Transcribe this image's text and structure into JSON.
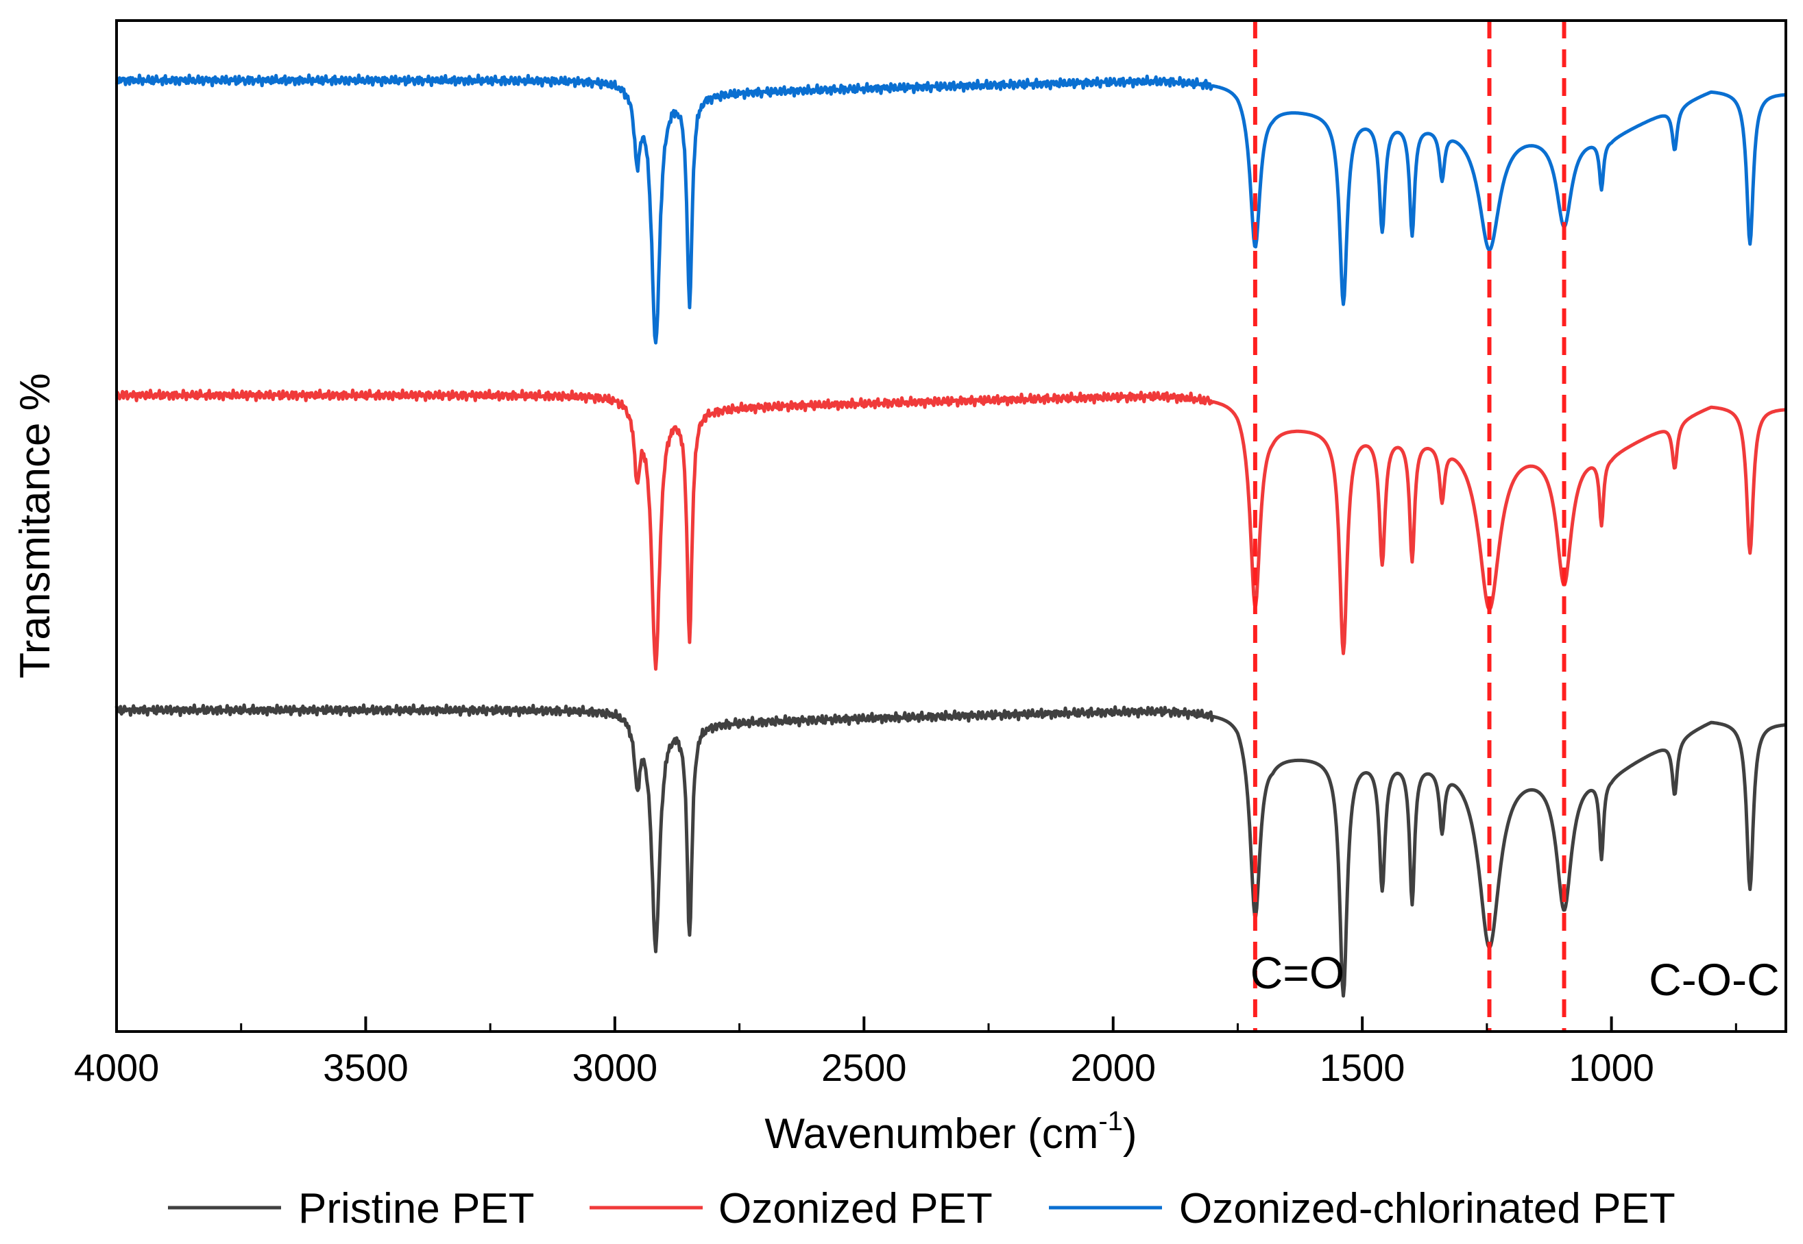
{
  "chart_data": {
    "type": "line",
    "title": "",
    "xlabel": "Wavenumber (cm",
    "xlabel_sup": "-1",
    "xlabel_close": ")",
    "ylabel": "Transmitance %",
    "xlim": [
      4000,
      650
    ],
    "x_reversed": true,
    "xticks": [
      4000,
      3500,
      3000,
      2500,
      2000,
      1500,
      1000
    ],
    "y_ticks_shown": false,
    "grid": false,
    "legend_position": "bottom",
    "colors": {
      "Pristine PET": "#404040",
      "Ozonized PET": "#f03a3a",
      "Ozonized-chlorinated PET": "#0a6fd1",
      "reference_lines": "#ff1f1f"
    },
    "reference_lines": [
      1715,
      1245,
      1095
    ],
    "annotations": [
      {
        "text": "C=O",
        "x": 1725,
        "y": 0.08
      },
      {
        "text": "C-O-C",
        "x": 925,
        "y": 0.06
      }
    ],
    "series": [
      {
        "name": "Pristine PET",
        "offset": 0,
        "peaks": [
          {
            "x": 2955,
            "depth": 0.2,
            "width": 7
          },
          {
            "x": 2918,
            "depth": 0.75,
            "width": 10
          },
          {
            "x": 2850,
            "depth": 0.7,
            "width": 6
          },
          {
            "x": 1715,
            "depth": 0.6,
            "width": 12
          },
          {
            "x": 1538,
            "depth": 0.78,
            "width": 9
          },
          {
            "x": 1460,
            "depth": 0.42,
            "width": 7
          },
          {
            "x": 1400,
            "depth": 0.46,
            "width": 6
          },
          {
            "x": 1340,
            "depth": 0.2,
            "width": 6
          },
          {
            "x": 1245,
            "depth": 0.6,
            "width": 25
          },
          {
            "x": 1095,
            "depth": 0.45,
            "width": 18
          },
          {
            "x": 1020,
            "depth": 0.26,
            "width": 5
          },
          {
            "x": 873,
            "depth": 0.18,
            "width": 6
          },
          {
            "x": 722,
            "depth": 0.55,
            "width": 8
          }
        ],
        "baseline": [
          [
            4000,
            1.0
          ],
          [
            3000,
            1.0
          ],
          [
            2800,
            0.96
          ],
          [
            1900,
            1.0
          ],
          [
            1750,
            0.99
          ],
          [
            1680,
            0.86
          ],
          [
            1400,
            0.85
          ],
          [
            1000,
            0.8
          ],
          [
            800,
            0.97
          ],
          [
            650,
            0.96
          ]
        ]
      },
      {
        "name": "Ozonized PET",
        "offset": 0.95,
        "peaks": [
          {
            "x": 2955,
            "depth": 0.22,
            "width": 7
          },
          {
            "x": 2918,
            "depth": 0.86,
            "width": 10
          },
          {
            "x": 2850,
            "depth": 0.76,
            "width": 6
          },
          {
            "x": 1715,
            "depth": 0.64,
            "width": 12
          },
          {
            "x": 1538,
            "depth": 0.73,
            "width": 9
          },
          {
            "x": 1460,
            "depth": 0.42,
            "width": 7
          },
          {
            "x": 1400,
            "depth": 0.4,
            "width": 6
          },
          {
            "x": 1340,
            "depth": 0.18,
            "width": 6
          },
          {
            "x": 1245,
            "depth": 0.55,
            "width": 25
          },
          {
            "x": 1095,
            "depth": 0.44,
            "width": 18
          },
          {
            "x": 1020,
            "depth": 0.22,
            "width": 5
          },
          {
            "x": 873,
            "depth": 0.15,
            "width": 6
          },
          {
            "x": 722,
            "depth": 0.48,
            "width": 8
          }
        ],
        "baseline": [
          [
            4000,
            1.0
          ],
          [
            3000,
            1.0
          ],
          [
            2800,
            0.96
          ],
          [
            1900,
            1.0
          ],
          [
            1750,
            0.99
          ],
          [
            1680,
            0.91
          ],
          [
            1400,
            0.88
          ],
          [
            1000,
            0.82
          ],
          [
            800,
            0.97
          ],
          [
            650,
            0.96
          ]
        ]
      },
      {
        "name": "Ozonized-chlorinated PET",
        "offset": 1.9,
        "peaks": [
          {
            "x": 2955,
            "depth": 0.22,
            "width": 7
          },
          {
            "x": 2918,
            "depth": 0.84,
            "width": 10
          },
          {
            "x": 2850,
            "depth": 0.7,
            "width": 6
          },
          {
            "x": 1715,
            "depth": 0.5,
            "width": 12
          },
          {
            "x": 1538,
            "depth": 0.62,
            "width": 9
          },
          {
            "x": 1460,
            "depth": 0.36,
            "width": 7
          },
          {
            "x": 1400,
            "depth": 0.36,
            "width": 6
          },
          {
            "x": 1340,
            "depth": 0.16,
            "width": 6
          },
          {
            "x": 1245,
            "depth": 0.4,
            "width": 25
          },
          {
            "x": 1095,
            "depth": 0.3,
            "width": 18
          },
          {
            "x": 1020,
            "depth": 0.16,
            "width": 5
          },
          {
            "x": 873,
            "depth": 0.14,
            "width": 6
          },
          {
            "x": 722,
            "depth": 0.5,
            "width": 8
          }
        ],
        "baseline": [
          [
            4000,
            1.0
          ],
          [
            3000,
            1.0
          ],
          [
            2800,
            0.96
          ],
          [
            1900,
            1.0
          ],
          [
            1750,
            0.99
          ],
          [
            1680,
            0.92
          ],
          [
            1400,
            0.87
          ],
          [
            1000,
            0.82
          ],
          [
            800,
            0.97
          ],
          [
            650,
            0.96
          ]
        ]
      }
    ]
  }
}
